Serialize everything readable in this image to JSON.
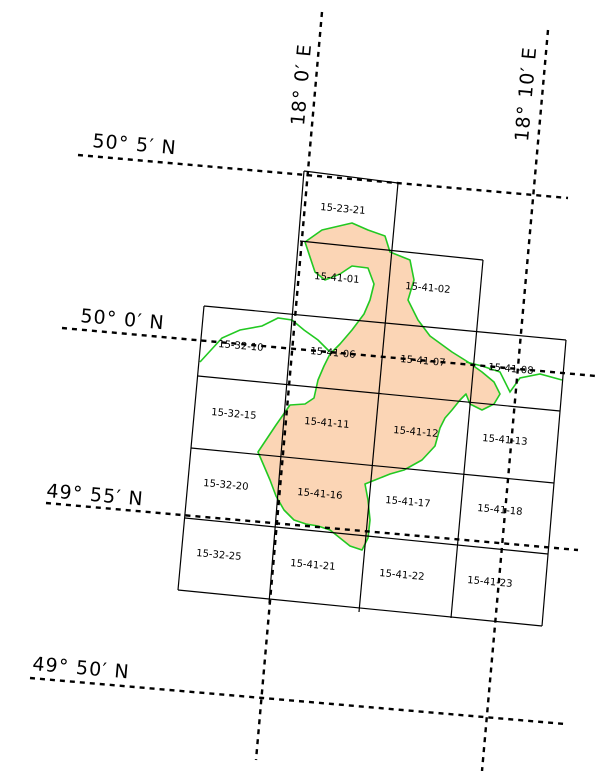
{
  "map": {
    "latitude_labels": [
      {
        "id": "lat-50-5",
        "text": "50° 5′ N"
      },
      {
        "id": "lat-50-0",
        "text": "50° 0′ N"
      },
      {
        "id": "lat-49-55",
        "text": "49° 55′ N"
      },
      {
        "id": "lat-49-50",
        "text": "49° 50′ N"
      }
    ],
    "longitude_labels": [
      {
        "id": "lon-18-0",
        "text": "18° 0′ E"
      },
      {
        "id": "lon-18-10",
        "text": "18° 10′ E"
      }
    ],
    "sheets": [
      {
        "id": "15-23-21",
        "text": "15-23-21"
      },
      {
        "id": "15-41-01",
        "text": "15-41-01"
      },
      {
        "id": "15-41-02",
        "text": "15-41-02"
      },
      {
        "id": "15-32-10",
        "text": "15-32-10"
      },
      {
        "id": "15-41-06",
        "text": "15-41-06"
      },
      {
        "id": "15-41-07",
        "text": "15-41-07"
      },
      {
        "id": "15-41-08",
        "text": "15-41-08"
      },
      {
        "id": "15-32-15",
        "text": "15-32-15"
      },
      {
        "id": "15-41-11",
        "text": "15-41-11"
      },
      {
        "id": "15-41-12",
        "text": "15-41-12"
      },
      {
        "id": "15-41-13",
        "text": "15-41-13"
      },
      {
        "id": "15-32-20",
        "text": "15-32-20"
      },
      {
        "id": "15-41-16",
        "text": "15-41-16"
      },
      {
        "id": "15-41-17",
        "text": "15-41-17"
      },
      {
        "id": "15-41-18",
        "text": "15-41-18"
      },
      {
        "id": "15-32-25",
        "text": "15-32-25"
      },
      {
        "id": "15-41-21",
        "text": "15-41-21"
      },
      {
        "id": "15-41-22",
        "text": "15-41-22"
      },
      {
        "id": "15-41-23",
        "text": "15-41-23"
      }
    ],
    "colors": {
      "area_fill": "#fbd5b5",
      "area_outline": "#22c922",
      "lines": "#000000"
    }
  }
}
